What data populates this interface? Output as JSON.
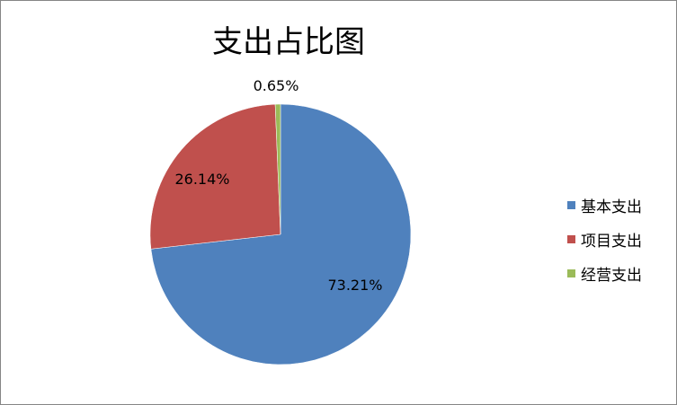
{
  "chart_data": {
    "type": "pie",
    "title": "支出占比图",
    "categories": [
      "基本支出",
      "项目支出",
      "经营支出"
    ],
    "values": [
      73.21,
      26.14,
      0.65
    ],
    "data_labels": [
      "73.21%",
      "26.14%",
      "0.65%"
    ],
    "colors": [
      "#4F81BD",
      "#C0504D",
      "#9BBB59"
    ],
    "legend_position": "right"
  }
}
